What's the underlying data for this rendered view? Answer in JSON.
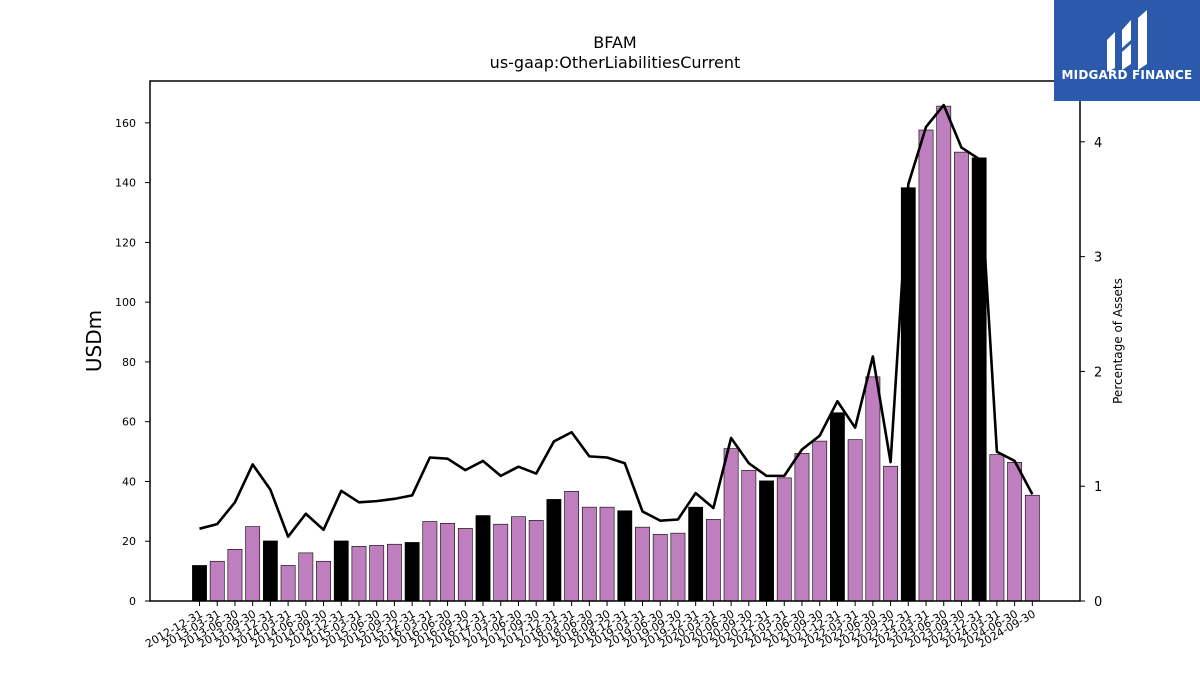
{
  "logo": {
    "text": "MIDGARD FINANCE",
    "icon": "midgard-logo-icon",
    "background": "#2b59ab"
  },
  "chart_data": {
    "type": "bar",
    "title": "BFAM",
    "subtitle": "us-gaap:OtherLiabilitiesCurrent",
    "ylabel": "USDm",
    "y2label": "Percentage of Assets",
    "ylim": [
      0,
      174
    ],
    "y2lim": [
      0,
      4.53
    ],
    "yticks": [
      0,
      20,
      40,
      60,
      80,
      100,
      120,
      140,
      160
    ],
    "y2ticks": [
      0,
      1,
      2,
      3,
      4
    ],
    "bar_colors": {
      "annual": "#000000",
      "quarterly": "#bf7fbf"
    },
    "line_color": "#000000",
    "categories": [
      "2012-12-31",
      "2013-03-31",
      "2013-06-30",
      "2013-09-30",
      "2013-12-31",
      "2014-03-31",
      "2014-06-30",
      "2014-09-30",
      "2014-12-31",
      "2015-03-31",
      "2015-06-30",
      "2015-09-30",
      "2015-12-31",
      "2016-03-31",
      "2016-06-30",
      "2016-09-30",
      "2016-12-31",
      "2017-03-31",
      "2017-06-30",
      "2017-09-30",
      "2017-12-31",
      "2018-03-31",
      "2018-06-30",
      "2018-09-30",
      "2018-12-31",
      "2019-03-31",
      "2019-06-30",
      "2019-09-30",
      "2019-12-31",
      "2020-03-31",
      "2020-06-30",
      "2020-09-30",
      "2020-12-31",
      "2021-03-31",
      "2021-06-30",
      "2021-09-30",
      "2021-12-31",
      "2022-03-31",
      "2022-06-30",
      "2022-09-30",
      "2022-12-31",
      "2023-03-31",
      "2023-06-30",
      "2023-09-30",
      "2023-12-31",
      "2024-03-31",
      "2024-06-30",
      "2024-09-30"
    ],
    "series": [
      {
        "values": [
          11.9,
          13.3,
          17.3,
          24.9,
          20.1,
          11.9,
          16.1,
          13.3,
          20.1,
          18.3,
          18.6,
          19.0,
          19.6,
          26.6,
          26.0,
          24.3,
          28.6,
          25.7,
          28.2,
          27.0,
          34.0,
          36.7,
          31.4,
          31.4,
          30.2,
          24.7,
          22.3,
          22.7,
          31.4,
          27.3,
          51.0,
          43.7,
          40.2,
          41.2,
          49.4,
          53.5,
          63.0,
          54.0,
          75.0,
          45.1,
          138.3,
          157.6,
          165.6,
          150.2,
          148.3,
          49.0,
          46.4,
          35.4
        ],
        "annual": [
          true,
          false,
          false,
          false,
          true,
          false,
          false,
          false,
          true,
          false,
          false,
          false,
          true,
          false,
          false,
          false,
          true,
          false,
          false,
          false,
          true,
          false,
          false,
          false,
          true,
          false,
          false,
          false,
          true,
          false,
          false,
          false,
          true,
          false,
          false,
          false,
          true,
          false,
          false,
          false,
          true,
          false,
          false,
          false,
          true,
          false,
          false,
          false
        ]
      },
      {
        "axis": "right",
        "values": [
          0.63,
          0.67,
          0.86,
          1.19,
          0.97,
          0.56,
          0.76,
          0.62,
          0.96,
          0.86,
          0.87,
          0.89,
          0.92,
          1.25,
          1.24,
          1.14,
          1.22,
          1.09,
          1.17,
          1.11,
          1.39,
          1.47,
          1.26,
          1.25,
          1.2,
          0.78,
          0.7,
          0.71,
          0.94,
          0.81,
          1.42,
          1.2,
          1.09,
          1.09,
          1.32,
          1.44,
          1.74,
          1.51,
          2.13,
          1.21,
          3.63,
          4.13,
          4.32,
          3.95,
          3.85,
          1.3,
          1.22,
          0.93
        ]
      }
    ]
  }
}
